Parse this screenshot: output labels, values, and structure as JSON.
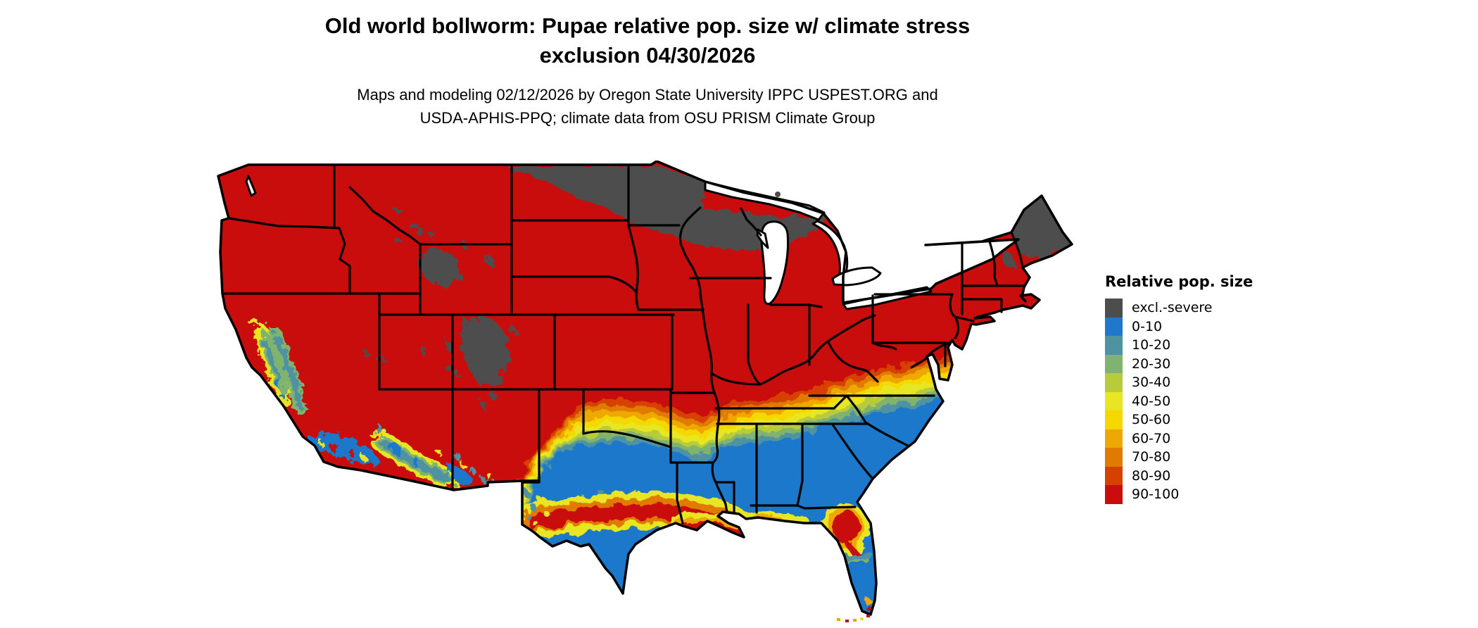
{
  "title": {
    "line1": "Old world bollworm: Pupae relative pop. size w/ climate stress",
    "line2": "exclusion 04/30/2026"
  },
  "subtitle": {
    "line1": "Maps and modeling 02/12/2026 by Oregon State University IPPC USPEST.ORG and",
    "line2": "USDA-APHIS-PPQ; climate data from OSU PRISM Climate Group"
  },
  "map": {
    "region": "Continental United States",
    "type": "pest risk choropleth raster with state boundaries"
  },
  "legend": {
    "title": "Relative pop. size",
    "items": [
      {
        "label": "excl.-severe",
        "color": "#4d4d4d"
      },
      {
        "label": "0-10",
        "color": "#1f78cb"
      },
      {
        "label": "10-20",
        "color": "#4f93a3"
      },
      {
        "label": "20-30",
        "color": "#7fb36e"
      },
      {
        "label": "30-40",
        "color": "#b8cc3b"
      },
      {
        "label": "40-50",
        "color": "#e8e523"
      },
      {
        "label": "50-60",
        "color": "#f5d800"
      },
      {
        "label": "60-70",
        "color": "#eea806"
      },
      {
        "label": "70-80",
        "color": "#e07a00"
      },
      {
        "label": "80-90",
        "color": "#d64100"
      },
      {
        "label": "90-100",
        "color": "#c90d0d"
      }
    ]
  }
}
